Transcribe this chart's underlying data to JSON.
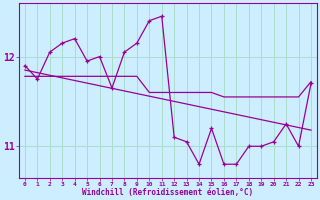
{
  "xlabel": "Windchill (Refroidissement éolien,°C)",
  "background_color": "#cceeff",
  "grid_color": "#aaddcc",
  "line_color": "#990099",
  "xlim": [
    -0.5,
    23.5
  ],
  "ylim": [
    10.65,
    12.6
  ],
  "yticks": [
    11,
    12
  ],
  "xticks": [
    0,
    1,
    2,
    3,
    4,
    5,
    6,
    7,
    8,
    9,
    10,
    11,
    12,
    13,
    14,
    15,
    16,
    17,
    18,
    19,
    20,
    21,
    22,
    23
  ],
  "hours": [
    0,
    1,
    2,
    3,
    4,
    5,
    6,
    7,
    8,
    9,
    10,
    11,
    12,
    13,
    14,
    15,
    16,
    17,
    18,
    19,
    20,
    21,
    22,
    23
  ],
  "windchill": [
    11.9,
    11.75,
    12.05,
    12.15,
    12.2,
    11.95,
    12.0,
    11.65,
    12.05,
    12.15,
    12.4,
    12.45,
    11.1,
    11.05,
    10.8,
    11.2,
    10.8,
    10.8,
    11.0,
    11.0,
    11.05,
    11.25,
    11.0,
    11.7
  ],
  "flat_line": [
    11.78,
    11.78,
    11.78,
    11.78,
    11.78,
    11.78,
    11.78,
    11.78,
    11.78,
    11.78,
    11.6,
    11.6,
    11.6,
    11.6,
    11.6,
    11.6,
    11.55,
    11.55,
    11.55,
    11.55,
    11.55,
    11.55,
    11.55,
    11.72
  ],
  "diag_start_y": 11.85,
  "diag_end_y": 11.18
}
